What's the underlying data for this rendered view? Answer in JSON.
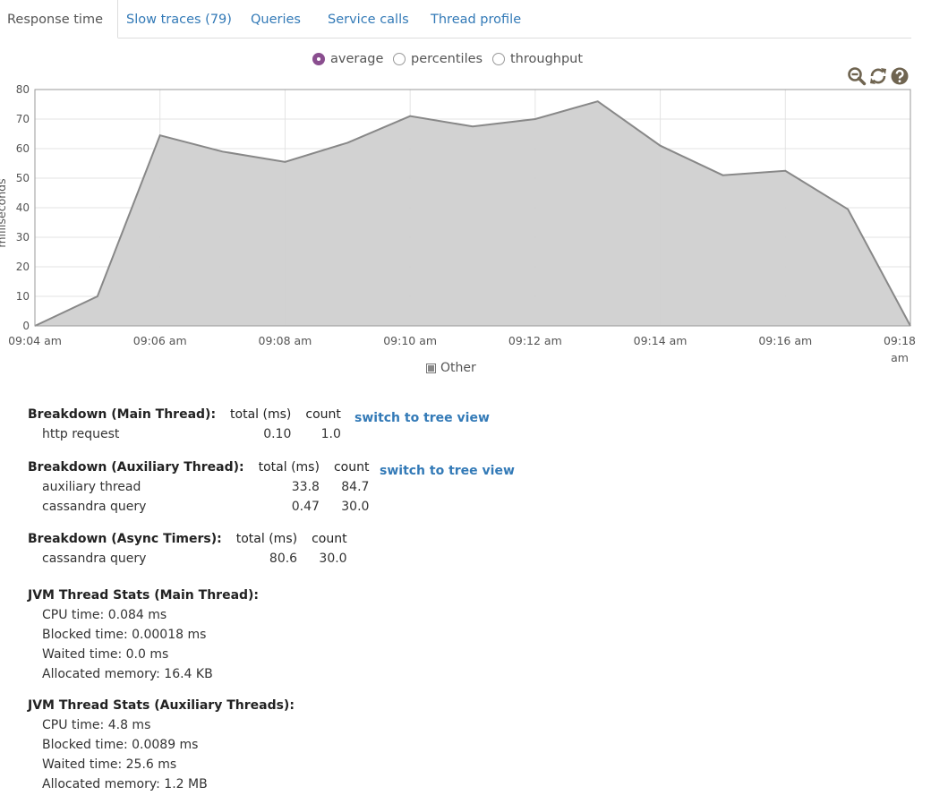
{
  "tabs": [
    {
      "label": "Response time"
    },
    {
      "label": "Slow traces (79)"
    },
    {
      "label": "Queries"
    },
    {
      "label": "Service calls"
    },
    {
      "label": "Thread profile"
    }
  ],
  "radios": [
    {
      "label": "average",
      "selected": true
    },
    {
      "label": "percentiles",
      "selected": false
    },
    {
      "label": "throughput",
      "selected": false
    }
  ],
  "toolbar_icons": [
    "zoom-out-icon",
    "refresh-icon",
    "help-icon"
  ],
  "colors": {
    "accent": "#8a4e8f",
    "link": "#337ab7",
    "area_fill": "#d0d0d0",
    "area_line": "#888888",
    "icon": "#6f6450"
  },
  "chart_data": {
    "type": "area",
    "ylabel": "milliseconds",
    "ylim": [
      0,
      80
    ],
    "yticks": [
      0,
      10,
      20,
      30,
      40,
      50,
      60,
      70,
      80
    ],
    "xticks": [
      "09:04 am",
      "09:06 am",
      "09:08 am",
      "09:10 am",
      "09:12 am",
      "09:14 am",
      "09:16 am",
      "09:18 am"
    ],
    "grid": true,
    "legend": "bottom",
    "series": [
      {
        "name": "Other",
        "x": [
          "09:04",
          "09:05",
          "09:06",
          "09:07",
          "09:08",
          "09:09",
          "09:10",
          "09:11",
          "09:12",
          "09:13",
          "09:14",
          "09:15",
          "09:16",
          "09:17",
          "09:18"
        ],
        "values": [
          0,
          10,
          64.5,
          59,
          55.5,
          62,
          71,
          67.5,
          70,
          76,
          61,
          51,
          52.5,
          39.5,
          0
        ]
      }
    ]
  },
  "breakdowns": [
    {
      "title": "Breakdown (Main Thread):",
      "col_total": "total (ms)",
      "col_count": "count",
      "switch_label": "switch to tree view",
      "rows": [
        {
          "name": "http request",
          "total": "0.10",
          "count": "1.0"
        }
      ]
    },
    {
      "title": "Breakdown (Auxiliary Thread):",
      "col_total": "total (ms)",
      "col_count": "count",
      "switch_label": "switch to tree view",
      "rows": [
        {
          "name": "auxiliary thread",
          "total": "33.8",
          "count": "84.7"
        },
        {
          "name": "cassandra query",
          "total": "0.47",
          "count": "30.0"
        }
      ]
    },
    {
      "title": "Breakdown (Async Timers):",
      "col_total": "total (ms)",
      "col_count": "count",
      "rows": [
        {
          "name": "cassandra query",
          "total": "80.6",
          "count": "30.0"
        }
      ]
    }
  ],
  "jvm": [
    {
      "title": "JVM Thread Stats (Main Thread):",
      "lines": [
        "CPU time: 0.084 ms",
        "Blocked time: 0.00018 ms",
        "Waited time: 0.0 ms",
        "Allocated memory: 16.4 KB"
      ]
    },
    {
      "title": "JVM Thread Stats (Auxiliary Threads):",
      "lines": [
        "CPU time: 4.8 ms",
        "Blocked time: 0.0089 ms",
        "Waited time: 25.6 ms",
        "Allocated memory: 1.2 MB"
      ]
    }
  ]
}
